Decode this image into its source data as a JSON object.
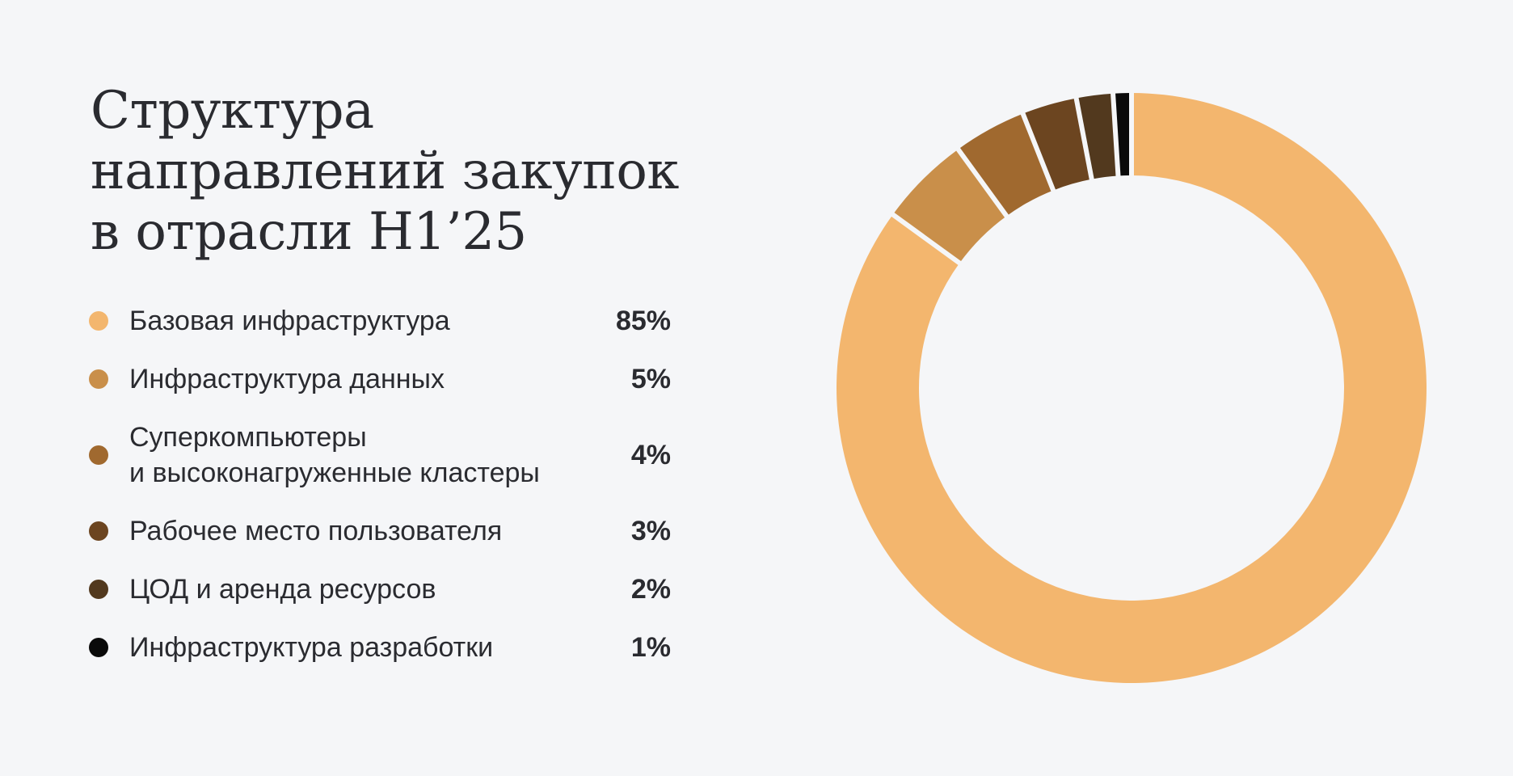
{
  "title_lines": [
    "Структура",
    "направлений закупок",
    "в отрасли H1’25"
  ],
  "legend": [
    {
      "label_lines": [
        "Базовая инфраструктура"
      ],
      "value_label": "85%",
      "color": "#f3b66e"
    },
    {
      "label_lines": [
        "Инфраструктура данных"
      ],
      "value_label": "5%",
      "color": "#c98f4a"
    },
    {
      "label_lines": [
        "Суперкомпьютеры",
        "и высоконагруженные кластеры"
      ],
      "value_label": "4%",
      "color": "#a0692f"
    },
    {
      "label_lines": [
        "Рабочее место пользователя"
      ],
      "value_label": "3%",
      "color": "#6c4520"
    },
    {
      "label_lines": [
        "ЦОД и аренда ресурсов"
      ],
      "value_label": "2%",
      "color": "#52391e"
    },
    {
      "label_lines": [
        "Инфраструктура разработки"
      ],
      "value_label": "1%",
      "color": "#0a0a0a"
    }
  ],
  "chart_data": {
    "type": "pie",
    "variant": "donut",
    "title": "Структура направлений закупок в отрасли H1’25",
    "categories": [
      "Базовая инфраструктура",
      "Инфраструктура данных",
      "Суперкомпьютеры и высоконагруженные кластеры",
      "Рабочее место пользователя",
      "ЦОД и аренда ресурсов",
      "Инфраструктура разработки"
    ],
    "values": [
      85,
      5,
      4,
      3,
      2,
      1
    ],
    "colors": [
      "#f3b66e",
      "#c98f4a",
      "#a0692f",
      "#6c4520",
      "#52391e",
      "#0a0a0a"
    ],
    "legend_position": "left"
  }
}
